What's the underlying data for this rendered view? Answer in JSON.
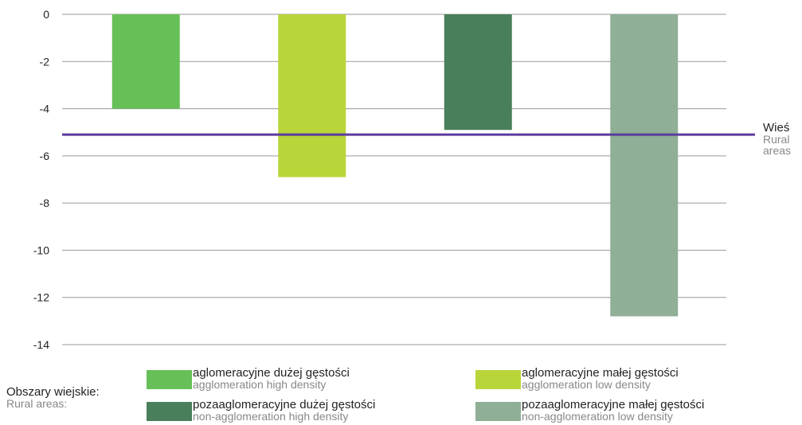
{
  "chart_data": {
    "type": "bar",
    "ylim": [
      -14,
      0
    ],
    "yticks": [
      0,
      -2,
      -4,
      -6,
      -8,
      -10,
      -12,
      -14
    ],
    "grid": true,
    "legend_placement": "bottom",
    "series": [
      {
        "name": "aglomeracyjne dużej gęstości",
        "name_en": "agglomeration high density",
        "value": -4.0,
        "color": "#66c057"
      },
      {
        "name": "aglomeracyjne małej gęstości",
        "name_en": "agglomeration low density",
        "value": -6.9,
        "color": "#b8d53a"
      },
      {
        "name": "pozaaglomeracyjne dużej gęstości",
        "name_en": "non-agglomeration high density",
        "value": -4.9,
        "color": "#4a7f5c"
      },
      {
        "name": "pozaaglomeracyjne małej gęstości",
        "name_en": "non-agglomeration low density",
        "value": -12.8,
        "color": "#8faf96"
      }
    ],
    "reference_line": {
      "value": -5.1,
      "label": "Wieś",
      "label_en_1": "Rural",
      "label_en_2": "areas",
      "color": "#5b3b9e"
    }
  },
  "legend": {
    "title": "Obszary wiejskie:",
    "title_en": "Rural areas:"
  }
}
